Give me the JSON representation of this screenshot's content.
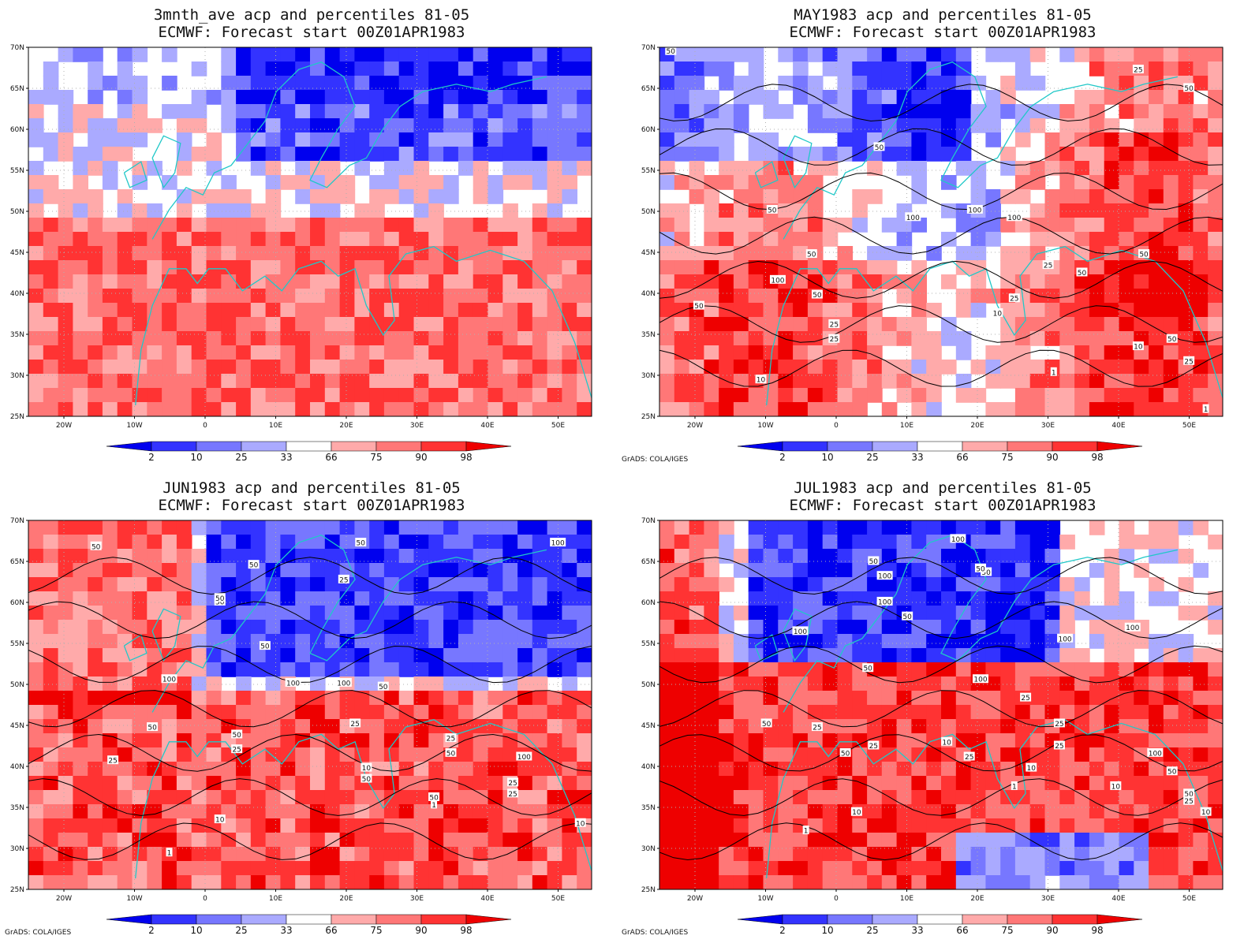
{
  "panels": [
    {
      "title_line1": "3mnth_ave acp and percentiles 81-05",
      "title_line2": "ECMWF: Forecast start 00Z01APR1983",
      "credit": "",
      "contour_labels": []
    },
    {
      "title_line1": "MAY1983 acp and percentiles 81-05",
      "title_line2": "ECMWF: Forecast start 00Z01APR1983",
      "credit": "GrADS: COLA/IGES",
      "contour_labels": [
        "50",
        "25",
        "50",
        "50",
        "50",
        "100",
        "100",
        "100",
        "50",
        "50",
        "50",
        "100",
        "25",
        "50",
        "50",
        "25",
        "10",
        "25",
        "25",
        "10",
        "50",
        "25",
        "10",
        "1",
        "1"
      ]
    },
    {
      "title_line1": "JUN1983 acp and percentiles 81-05",
      "title_line2": "ECMWF: Forecast start 00Z01APR1983",
      "credit": "GrADS: COLA/IGES",
      "contour_labels": [
        "50",
        "50",
        "50",
        "25",
        "50",
        "100",
        "50",
        "50",
        "100",
        "100",
        "100",
        "50",
        "25",
        "25",
        "50",
        "50",
        "25",
        "100",
        "50",
        "10",
        "25",
        "50",
        "50",
        "25",
        "25",
        "10",
        "1",
        "10",
        "1"
      ]
    },
    {
      "title_line1": "JUL1983 acp and percentiles 81-05",
      "title_line2": "ECMWF: Forecast start 00Z01APR1983",
      "credit": "GrADS: COLA/IGES",
      "contour_labels": [
        "50",
        "100",
        "50",
        "100",
        "100",
        "50",
        "50",
        "100",
        "50",
        "25",
        "100",
        "100",
        "100",
        "50",
        "25",
        "25",
        "10",
        "25",
        "50",
        "25",
        "25",
        "100",
        "50",
        "10",
        "1",
        "10",
        "10",
        "1",
        "10",
        "50",
        "25"
      ]
    }
  ],
  "map": {
    "lat_labels": [
      "70N",
      "65N",
      "60N",
      "55N",
      "50N",
      "45N",
      "40N",
      "35N",
      "30N",
      "25N"
    ],
    "lon_labels": [
      "20W",
      "10W",
      "0",
      "10E",
      "20E",
      "30E",
      "40E",
      "50E"
    ]
  },
  "colorbar": {
    "labels": [
      "2",
      "10",
      "25",
      "33",
      "66",
      "75",
      "90",
      "98"
    ],
    "colors": [
      "#0000ee",
      "#3333ff",
      "#7777ff",
      "#aaaaff",
      "#ffffff",
      "#ffaaaa",
      "#ff7777",
      "#ff3333",
      "#ee0000"
    ]
  },
  "palette": {
    "coast": "#20c8c8",
    "contour": "#000000",
    "grid": "#b0b0b0"
  }
}
